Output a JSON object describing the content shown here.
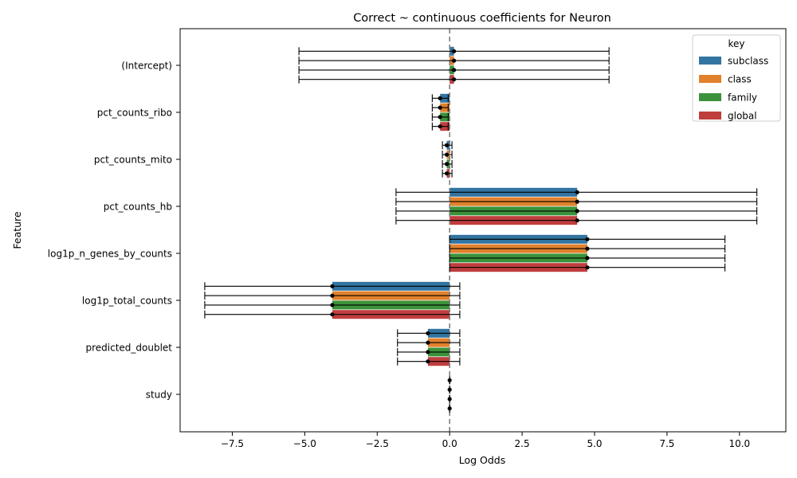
{
  "chart_data": {
    "type": "bar",
    "orientation": "horizontal",
    "title": "Correct ~ continuous coefficients for Neuron",
    "xlabel": "Log Odds",
    "ylabel": "Feature",
    "xlim": [
      -9.3,
      11.6
    ],
    "xticks": [
      -7.5,
      -5.0,
      -2.5,
      0.0,
      2.5,
      5.0,
      7.5,
      10.0
    ],
    "xtick_labels": [
      "−7.5",
      "−5.0",
      "−2.5",
      "0.0",
      "2.5",
      "5.0",
      "7.5",
      "10.0"
    ],
    "reference_line_x": 0,
    "grid": false,
    "legend": {
      "title": "key",
      "position": "top-right",
      "entries": [
        "subclass",
        "class",
        "family",
        "global"
      ]
    },
    "categories": [
      "(Intercept)",
      "pct_counts_ribo",
      "pct_counts_mito",
      "pct_counts_hb",
      "log1p_n_genes_by_counts",
      "log1p_total_counts",
      "predicted_doublet",
      "study"
    ],
    "series": [
      {
        "name": "subclass",
        "color": "#3274a1",
        "values": [
          0.15,
          -0.33,
          -0.1,
          4.4,
          4.75,
          -4.05,
          -0.75,
          0.0
        ],
        "ci_low": [
          -5.2,
          -0.6,
          -0.25,
          -1.85,
          0.0,
          -8.45,
          -1.8,
          0.0
        ],
        "ci_high": [
          5.5,
          -0.05,
          0.08,
          10.6,
          9.5,
          0.35,
          0.35,
          0.0
        ]
      },
      {
        "name": "class",
        "color": "#e1812c",
        "values": [
          0.15,
          -0.33,
          -0.1,
          4.4,
          4.75,
          -4.05,
          -0.75,
          0.0
        ],
        "ci_low": [
          -5.2,
          -0.6,
          -0.25,
          -1.85,
          0.0,
          -8.45,
          -1.8,
          0.0
        ],
        "ci_high": [
          5.5,
          -0.05,
          0.08,
          10.6,
          9.5,
          0.35,
          0.35,
          0.0
        ]
      },
      {
        "name": "family",
        "color": "#3a923a",
        "values": [
          0.15,
          -0.33,
          -0.1,
          4.4,
          4.75,
          -4.05,
          -0.75,
          0.0
        ],
        "ci_low": [
          -5.2,
          -0.6,
          -0.25,
          -1.85,
          0.0,
          -8.45,
          -1.8,
          0.0
        ],
        "ci_high": [
          5.5,
          -0.05,
          0.08,
          10.6,
          9.5,
          0.35,
          0.35,
          0.0
        ]
      },
      {
        "name": "global",
        "color": "#c03d3e",
        "values": [
          0.15,
          -0.33,
          -0.1,
          4.4,
          4.75,
          -4.05,
          -0.75,
          0.0
        ],
        "ci_low": [
          -5.2,
          -0.6,
          -0.25,
          -1.85,
          0.0,
          -8.45,
          -1.8,
          0.0
        ],
        "ci_high": [
          5.5,
          -0.05,
          0.08,
          10.6,
          9.5,
          0.35,
          0.35,
          0.0
        ]
      }
    ]
  }
}
